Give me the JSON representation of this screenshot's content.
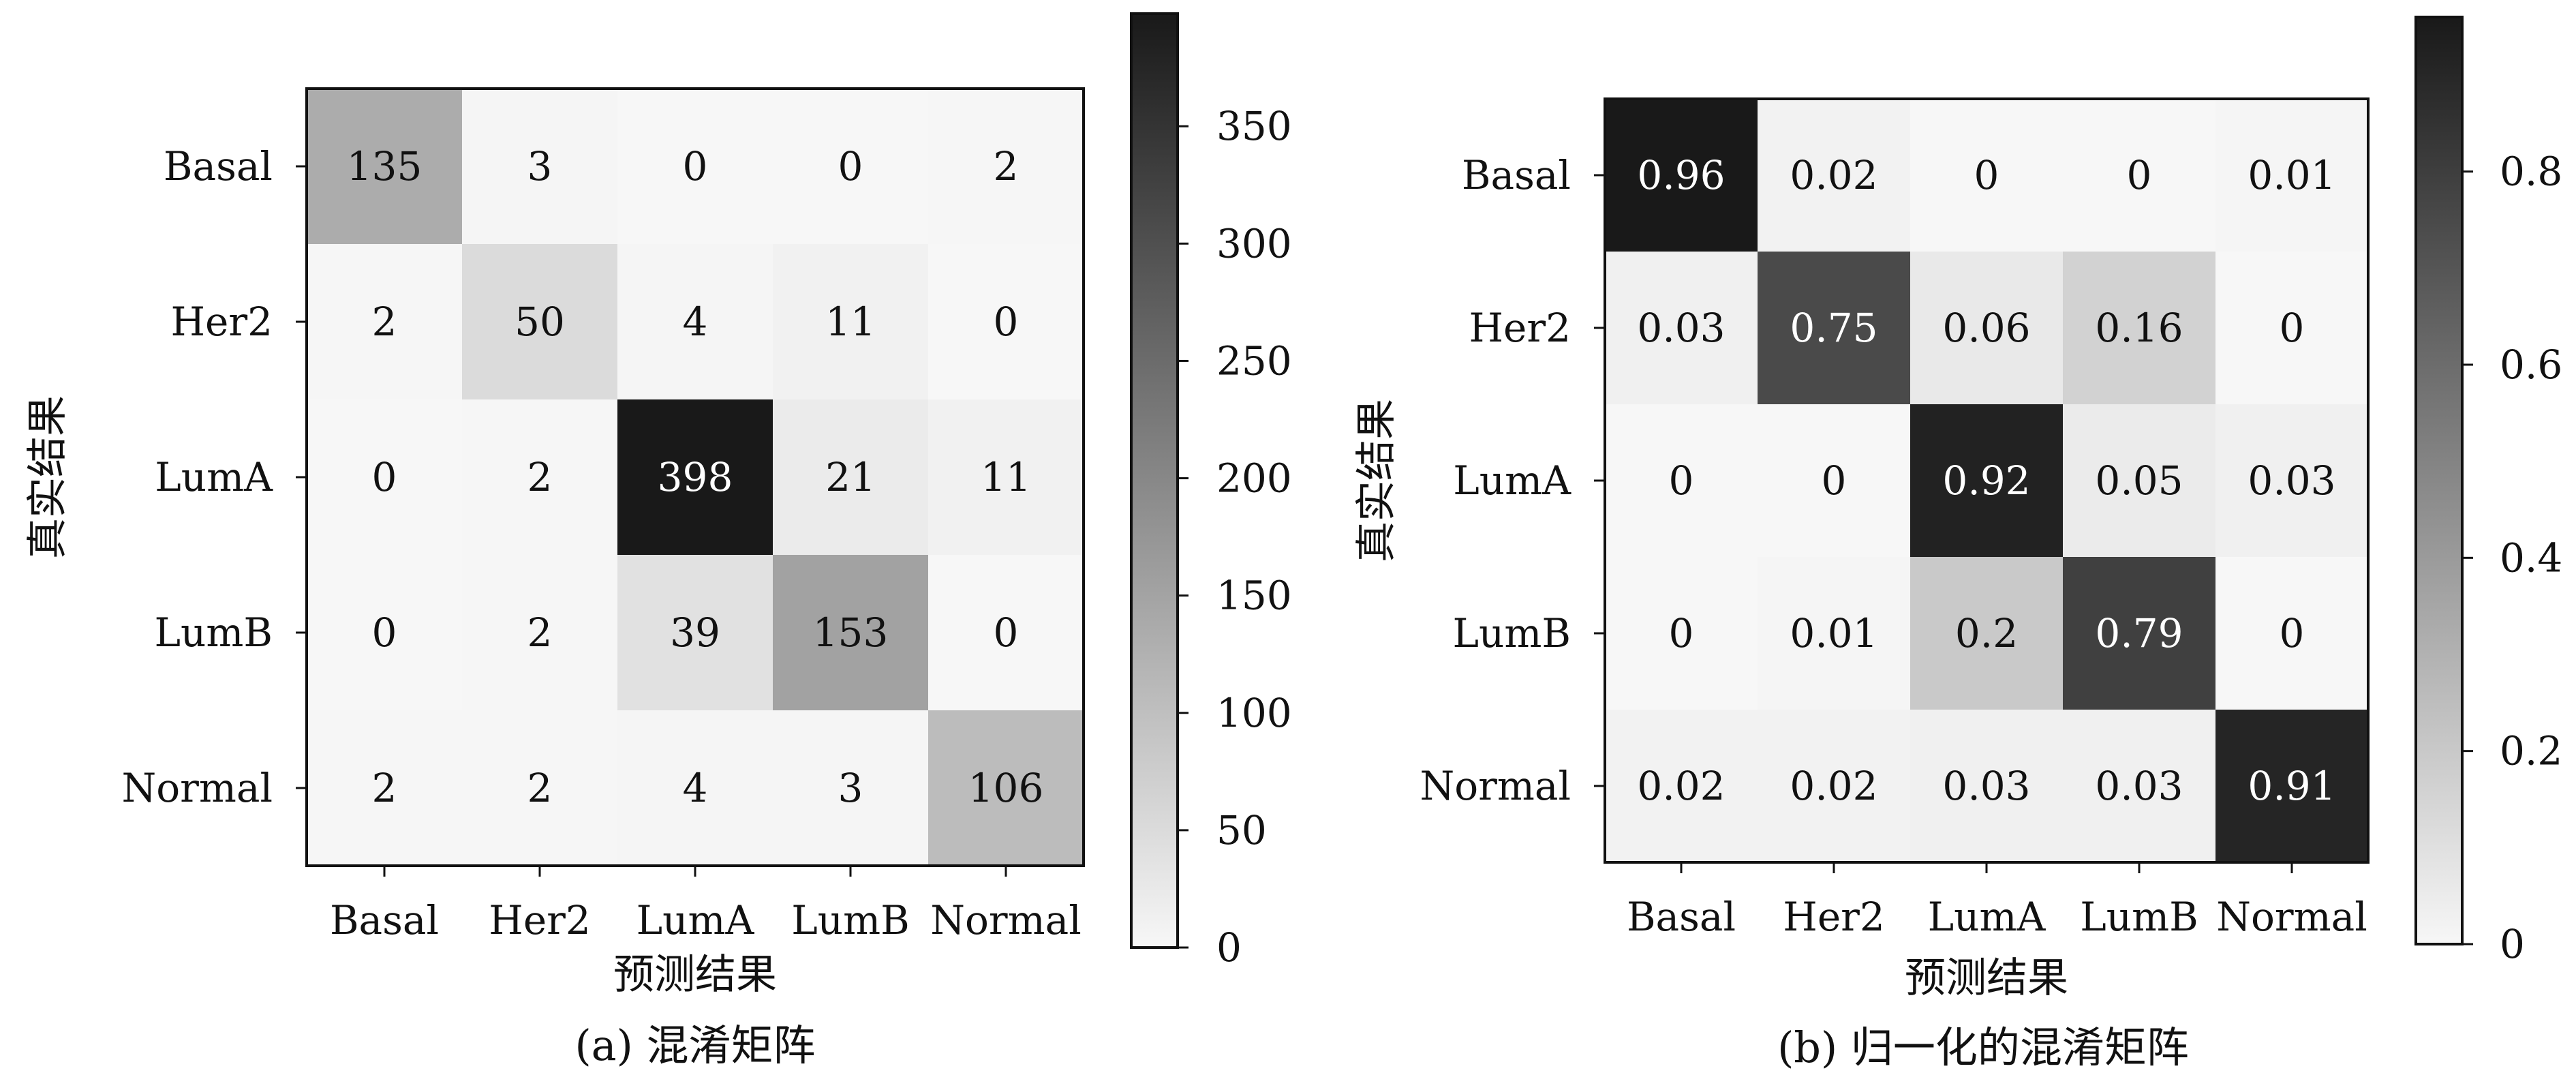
{
  "chart_data": [
    {
      "type": "heatmap",
      "categories": [
        "Basal",
        "Her2",
        "LumA",
        "LumB",
        "Normal"
      ],
      "values": [
        [
          135,
          3,
          0,
          0,
          2
        ],
        [
          2,
          50,
          4,
          11,
          0
        ],
        [
          0,
          2,
          398,
          21,
          11
        ],
        [
          0,
          2,
          39,
          153,
          0
        ],
        [
          2,
          2,
          4,
          3,
          106
        ]
      ],
      "cell_labels": [
        [
          "135",
          "3",
          "0",
          "0",
          "2"
        ],
        [
          "2",
          "50",
          "4",
          "11",
          "0"
        ],
        [
          "0",
          "2",
          "398",
          "21",
          "11"
        ],
        [
          "0",
          "2",
          "39",
          "153",
          "0"
        ],
        [
          "2",
          "2",
          "4",
          "3",
          "106"
        ]
      ],
      "xlabel": "预测结果",
      "ylabel": "真实结果",
      "caption": "(a) 混淆矩阵",
      "colorbar": {
        "range": [
          0,
          398
        ],
        "ticks": [
          0,
          50,
          100,
          150,
          200,
          250,
          300,
          350
        ],
        "tick_labels": [
          "0",
          "50",
          "100",
          "150",
          "200",
          "250",
          "300",
          "350"
        ]
      },
      "colormap": [
        "#f7f7f7",
        "#191919"
      ],
      "grid": false
    },
    {
      "type": "heatmap",
      "categories": [
        "Basal",
        "Her2",
        "LumA",
        "LumB",
        "Normal"
      ],
      "values": [
        [
          0.96,
          0.02,
          0,
          0,
          0.01
        ],
        [
          0.03,
          0.75,
          0.06,
          0.16,
          0
        ],
        [
          0,
          0,
          0.92,
          0.05,
          0.03
        ],
        [
          0,
          0.01,
          0.2,
          0.79,
          0
        ],
        [
          0.02,
          0.02,
          0.03,
          0.03,
          0.91
        ]
      ],
      "cell_labels": [
        [
          "0.96",
          "0.02",
          "0",
          "0",
          "0.01"
        ],
        [
          "0.03",
          "0.75",
          "0.06",
          "0.16",
          "0"
        ],
        [
          "0",
          "0",
          "0.92",
          "0.05",
          "0.03"
        ],
        [
          "0",
          "0.01",
          "0.2",
          "0.79",
          "0"
        ],
        [
          "0.02",
          "0.02",
          "0.03",
          "0.03",
          "0.91"
        ]
      ],
      "xlabel": "预测结果",
      "ylabel": "真实结果",
      "caption": "(b) 归一化的混淆矩阵",
      "colorbar": {
        "range": [
          0,
          0.96
        ],
        "ticks": [
          0,
          0.2,
          0.4,
          0.6,
          0.8
        ],
        "tick_labels": [
          "0",
          "0.2",
          "0.4",
          "0.6",
          "0.8"
        ]
      },
      "colormap": [
        "#f7f7f7",
        "#191919"
      ],
      "grid": false
    }
  ]
}
